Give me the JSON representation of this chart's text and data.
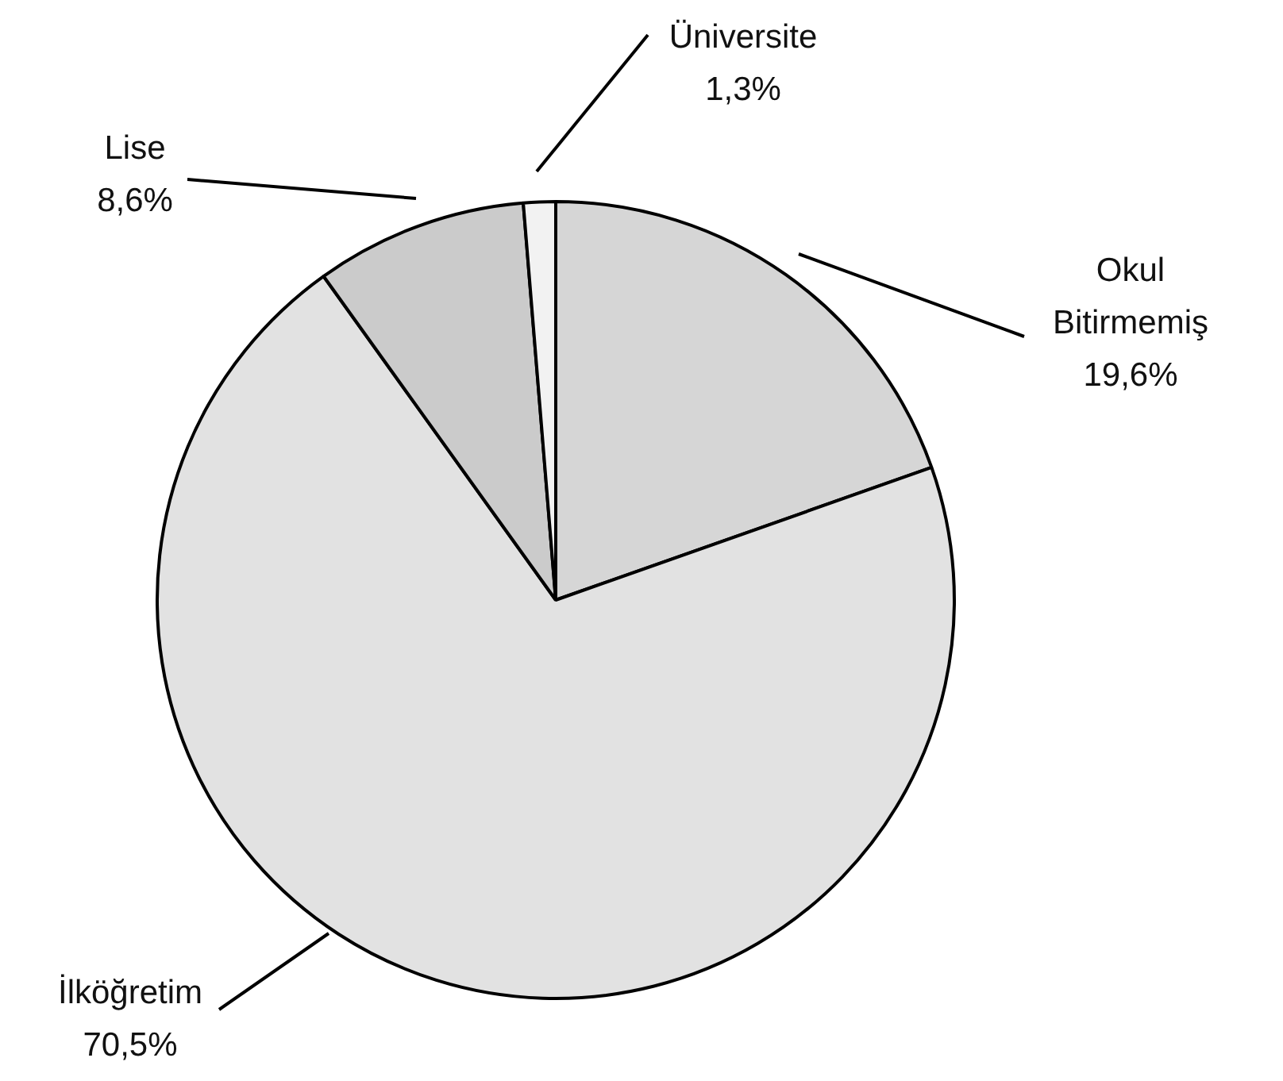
{
  "chart_data": {
    "type": "pie",
    "categories": [
      "Okul Bitirmemiş",
      "İlköğretim",
      "Lise",
      "Üniversite"
    ],
    "values": [
      19.6,
      70.5,
      8.6,
      1.3
    ],
    "value_labels": [
      "19,6%",
      "70,5%",
      "8,6%",
      "1,3%"
    ],
    "colors": [
      "#d6d6d6",
      "#e2e2e2",
      "#cbcbcb",
      "#f2f2f2"
    ],
    "legend": false
  }
}
